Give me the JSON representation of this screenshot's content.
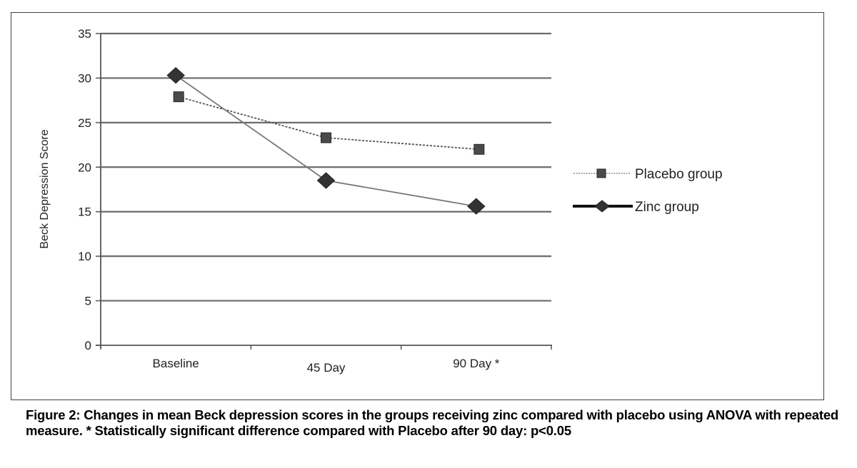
{
  "chart_data": {
    "type": "line",
    "title": "",
    "xlabel": "",
    "ylabel": "Beck Depression Score",
    "categories": [
      "Baseline",
      "45 Day",
      "90 Day *"
    ],
    "ylim": [
      0,
      35
    ],
    "yticks": [
      0,
      5,
      10,
      15,
      20,
      25,
      30,
      35
    ],
    "ytick_labels": [
      "0",
      "5",
      "10",
      "15",
      "20",
      "25",
      "30",
      "35"
    ],
    "grid": true,
    "legend_position": "right",
    "series": [
      {
        "name": "Placebo group",
        "marker": "square",
        "line_style": "dotted",
        "color": "#4a4a4a",
        "values": [
          27.9,
          23.3,
          22.0
        ]
      },
      {
        "name": "Zinc group",
        "marker": "diamond",
        "line_style": "solid",
        "color": "#333333",
        "values": [
          30.3,
          18.5,
          15.6
        ]
      }
    ]
  },
  "caption": "Figure 2: Changes in mean Beck depression scores in the groups receiving zinc compared with placebo using ANOVA with repeated measure. * Statistically significant difference compared with Placebo after 90 day: p<0.05"
}
